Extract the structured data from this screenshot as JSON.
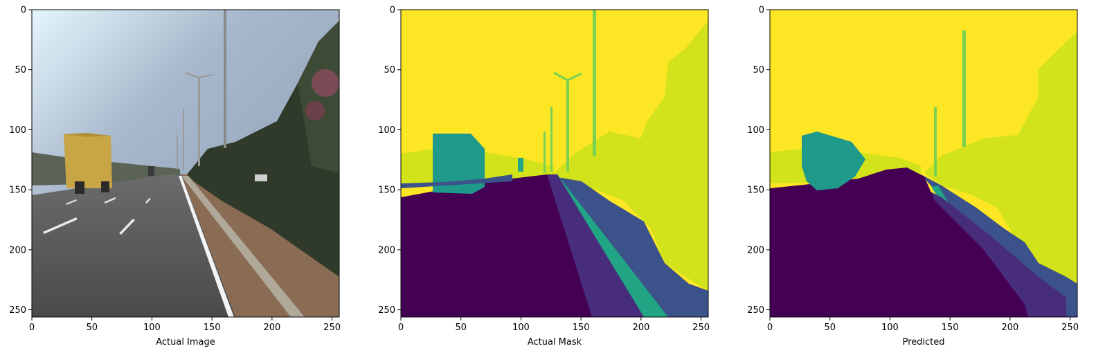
{
  "chart_data": [
    {
      "type": "image",
      "content": "road-scene-photo",
      "xlabel": "Actual Image",
      "ylabel": "",
      "xlim": [
        0,
        256
      ],
      "ylim": [
        256,
        0
      ],
      "xticks": [
        0,
        50,
        100,
        150,
        200,
        250
      ],
      "yticks": [
        0,
        50,
        100,
        150,
        200,
        250
      ],
      "grid": false
    },
    {
      "type": "image",
      "content": "segmentation-mask",
      "xlabel": "Actual Mask",
      "ylabel": "",
      "xlim": [
        0,
        256
      ],
      "ylim": [
        256,
        0
      ],
      "xticks": [
        0,
        50,
        100,
        150,
        200,
        250
      ],
      "yticks": [
        0,
        50,
        100,
        150,
        200,
        250
      ],
      "grid": false
    },
    {
      "type": "image",
      "content": "segmentation-mask-predicted",
      "xlabel": "Predicted",
      "ylabel": "",
      "xlim": [
        0,
        256
      ],
      "ylim": [
        256,
        0
      ],
      "xticks": [
        0,
        50,
        100,
        150,
        200,
        250
      ],
      "yticks": [
        0,
        50,
        100,
        150,
        200,
        250
      ],
      "grid": false
    }
  ],
  "colormap": {
    "name": "viridis",
    "road": "#440154",
    "sidewalk": "#3b528b",
    "road_edge": "#472d7b",
    "divider": "#21a585",
    "vehicle": "#1f9a8a",
    "pole": "#7ad151",
    "vegetation": "#d2e21b",
    "sky": "#fde725"
  }
}
